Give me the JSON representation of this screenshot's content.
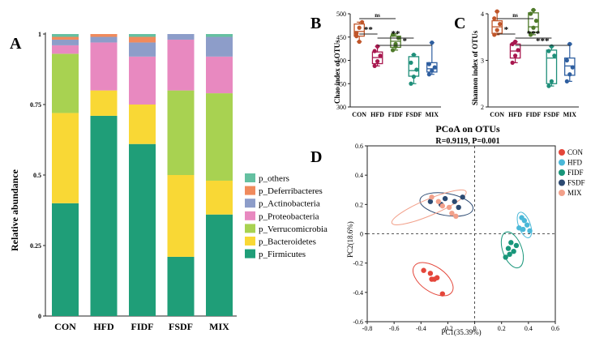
{
  "chart_data": [
    {
      "panel": "A",
      "type": "bar",
      "stacked": true,
      "ylabel": "Relative abundance",
      "ylim": [
        0,
        1
      ],
      "yticks": [
        "0",
        "0.25",
        "0.5",
        "0.75",
        "1"
      ],
      "categories": [
        "CON",
        "HFD",
        "FIDF",
        "FSDF",
        "MIX"
      ],
      "series": [
        {
          "name": "p_Firmicutes",
          "color": "#1f9e78",
          "values": [
            0.4,
            0.71,
            0.61,
            0.21,
            0.36
          ]
        },
        {
          "name": "p_Bacteroidetes",
          "color": "#f9d835",
          "values": [
            0.32,
            0.09,
            0.14,
            0.29,
            0.12
          ]
        },
        {
          "name": "p_Verrucomicrobia",
          "color": "#a8d251",
          "values": [
            0.21,
            0.0,
            0.0,
            0.3,
            0.31
          ]
        },
        {
          "name": "p_Proteobacteria",
          "color": "#e889c0",
          "values": [
            0.03,
            0.17,
            0.17,
            0.18,
            0.13
          ]
        },
        {
          "name": "p_Actinobacteria",
          "color": "#8d9dc9",
          "values": [
            0.02,
            0.02,
            0.05,
            0.02,
            0.07
          ]
        },
        {
          "name": "p_Deferribacteres",
          "color": "#f08a5c",
          "values": [
            0.01,
            0.01,
            0.02,
            0.0,
            0.0
          ]
        },
        {
          "name": "p_others",
          "color": "#65c0a1",
          "values": [
            0.01,
            0.0,
            0.01,
            0.0,
            0.01
          ]
        }
      ],
      "legend_order": [
        "p_others",
        "p_Deferribacteres",
        "p_Actinobacteria",
        "p_Proteobacteria",
        "p_Verrucomicrobia",
        "p_Bacteroidetes",
        "p_Firmicutes"
      ]
    },
    {
      "panel": "B",
      "type": "box",
      "ylabel": "Chao index of OTUs",
      "ylim": [
        300,
        500
      ],
      "yticks": [
        "300",
        "350",
        "400",
        "450",
        "500"
      ],
      "categories": [
        "CON",
        "HFD",
        "FIDF",
        "FSDF",
        "MIX"
      ],
      "colors": [
        "#c0562a",
        "#a8184f",
        "#4f7a2a",
        "#1f8f7a",
        "#2f5fa0"
      ],
      "boxes": [
        {
          "min": 440,
          "q1": 452,
          "median": 462,
          "q3": 478,
          "max": 482
        },
        {
          "min": 388,
          "q1": 393,
          "median": 406,
          "q3": 418,
          "max": 430
        },
        {
          "min": 422,
          "q1": 428,
          "median": 441,
          "q3": 452,
          "max": 457
        },
        {
          "min": 350,
          "q1": 366,
          "median": 378,
          "q3": 408,
          "max": 412
        },
        {
          "min": 370,
          "q1": 375,
          "median": 382,
          "q3": 395,
          "max": 438
        }
      ],
      "points": [
        [
          452,
          470,
          482,
          458,
          440
        ],
        [
          388,
          398,
          410,
          420,
          430
        ],
        [
          422,
          435,
          448,
          455,
          430
        ],
        [
          350,
          365,
          380,
          395,
          412
        ],
        [
          370,
          378,
          385,
          392,
          438
        ]
      ],
      "significance": [
        {
          "from": "CON",
          "to": "FIDF",
          "label": "ns"
        },
        {
          "from": "CON",
          "to": "HFD",
          "label": "**"
        },
        {
          "from": "HFD",
          "to": "FSDF",
          "label": "**"
        },
        {
          "from": "HFD",
          "to": "MIX",
          "label": "*"
        }
      ]
    },
    {
      "panel": "C",
      "type": "box",
      "ylabel": "Shannon index of OTUs",
      "ylim": [
        2,
        4
      ],
      "yticks": [
        "2",
        "3",
        "4"
      ],
      "categories": [
        "CON",
        "HFD",
        "FIDF",
        "FSDF",
        "MIX"
      ],
      "colors": [
        "#c0562a",
        "#a8184f",
        "#4f7a2a",
        "#1f8f7a",
        "#2f5fa0"
      ],
      "boxes": [
        {
          "min": 3.55,
          "q1": 3.58,
          "median": 3.72,
          "q3": 3.85,
          "max": 4.05
        },
        {
          "min": 2.95,
          "q1": 3.05,
          "median": 3.2,
          "q3": 3.35,
          "max": 3.4
        },
        {
          "min": 3.55,
          "q1": 3.6,
          "median": 3.72,
          "q3": 4.02,
          "max": 4.08
        },
        {
          "min": 2.45,
          "q1": 2.5,
          "median": 3.05,
          "q3": 3.22,
          "max": 3.3
        },
        {
          "min": 2.55,
          "q1": 2.68,
          "median": 2.88,
          "q3": 3.05,
          "max": 3.35
        }
      ],
      "points": [
        [
          3.55,
          3.65,
          3.78,
          3.9,
          4.05
        ],
        [
          2.95,
          3.1,
          3.22,
          3.35,
          3.4
        ],
        [
          3.55,
          3.7,
          3.85,
          4.0,
          4.08
        ],
        [
          2.45,
          2.55,
          3.1,
          3.2,
          3.3
        ],
        [
          2.55,
          2.7,
          2.85,
          3.0,
          3.35
        ]
      ],
      "significance": [
        {
          "from": "CON",
          "to": "FIDF",
          "label": "ns"
        },
        {
          "from": "CON",
          "to": "HFD",
          "label": "*"
        },
        {
          "from": "HFD",
          "to": "FSDF",
          "label": "***"
        },
        {
          "from": "HFD",
          "to": "MIX",
          "label": "***"
        }
      ]
    },
    {
      "panel": "D",
      "type": "scatter",
      "title": "PCoA on OTUs",
      "subtitle": "R=0.9119, P=0.001",
      "xlabel": "PC1(35.39%)",
      "ylabel": "PC2(18.6%)",
      "xlim": [
        -0.8,
        0.6
      ],
      "ylim": [
        -0.6,
        0.6
      ],
      "xticks": [
        "-0.8",
        "-0.6",
        "-0.4",
        "-0.2",
        "0",
        "0.2",
        "0.4",
        "0.6"
      ],
      "yticks": [
        "-0.6",
        "-0.4",
        "-0.2",
        "0",
        "0.2",
        "0.4",
        "0.6"
      ],
      "series": [
        {
          "name": "CON",
          "color": "#e4463a",
          "points": [
            [
              -0.38,
              -0.25
            ],
            [
              -0.33,
              -0.27
            ],
            [
              -0.3,
              -0.31
            ],
            [
              -0.28,
              -0.3
            ],
            [
              -0.32,
              -0.31
            ],
            [
              -0.24,
              -0.41
            ]
          ],
          "ellipse": {
            "cx": -0.31,
            "cy": -0.31,
            "rx": 0.17,
            "ry": 0.085,
            "angle": -35
          }
        },
        {
          "name": "HFD",
          "color": "#4ab8d8",
          "points": [
            [
              0.35,
              0.11
            ],
            [
              0.37,
              0.09
            ],
            [
              0.39,
              0.06
            ],
            [
              0.36,
              0.03
            ],
            [
              0.41,
              0.02
            ],
            [
              0.33,
              0.04
            ]
          ],
          "ellipse": {
            "cx": 0.37,
            "cy": 0.06,
            "rx": 0.1,
            "ry": 0.04,
            "angle": -70
          }
        },
        {
          "name": "FIDF",
          "color": "#18967a",
          "points": [
            [
              0.27,
              -0.06
            ],
            [
              0.31,
              -0.08
            ],
            [
              0.25,
              -0.1
            ],
            [
              0.29,
              -0.12
            ],
            [
              0.23,
              -0.16
            ],
            [
              0.26,
              -0.14
            ]
          ],
          "ellipse": {
            "cx": 0.28,
            "cy": -0.11,
            "rx": 0.14,
            "ry": 0.065,
            "angle": -70
          }
        },
        {
          "name": "FSDF",
          "color": "#2c4a72",
          "points": [
            [
              -0.33,
              0.22
            ],
            [
              -0.22,
              0.24
            ],
            [
              -0.09,
              0.25
            ],
            [
              -0.25,
              0.2
            ],
            [
              -0.12,
              0.18
            ],
            [
              -0.15,
              0.22
            ]
          ],
          "ellipse": {
            "cx": -0.21,
            "cy": 0.2,
            "rx": 0.2,
            "ry": 0.075,
            "angle": -10
          }
        },
        {
          "name": "MIX",
          "color": "#f2a08a",
          "points": [
            [
              -0.32,
              0.25
            ],
            [
              -0.27,
              0.22
            ],
            [
              -0.24,
              0.19
            ],
            [
              -0.19,
              0.18
            ],
            [
              -0.17,
              0.14
            ],
            [
              -0.14,
              0.12
            ]
          ],
          "ellipse": {
            "cx": -0.34,
            "cy": 0.18,
            "rx": 0.3,
            "ry": 0.055,
            "angle": 23
          }
        }
      ]
    }
  ],
  "panel_labels": {
    "a": "A",
    "b": "B",
    "c": "C",
    "d": "D"
  }
}
